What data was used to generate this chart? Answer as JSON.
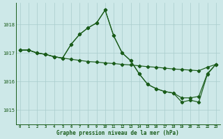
{
  "bg_color": "#cde8e8",
  "grid_color": "#a8cccc",
  "line_color": "#1a5c1a",
  "xlabel": "Graphe pression niveau de la mer (hPa)",
  "ylim": [
    1014.5,
    1018.75
  ],
  "xlim": [
    -0.5,
    23.5
  ],
  "yticks": [
    1015,
    1016,
    1017,
    1018
  ],
  "xticks": [
    0,
    1,
    2,
    3,
    4,
    5,
    6,
    7,
    8,
    9,
    10,
    11,
    12,
    13,
    14,
    15,
    16,
    17,
    18,
    19,
    20,
    21,
    22,
    23
  ],
  "series1_x": [
    0,
    1,
    2,
    3,
    4,
    5,
    6,
    7,
    8,
    9,
    10,
    11,
    12,
    13,
    14,
    15,
    16,
    17,
    18,
    19,
    20,
    21,
    22,
    23
  ],
  "series1_y": [
    1017.1,
    1017.1,
    1017.0,
    1016.95,
    1016.87,
    1016.82,
    1016.78,
    1016.74,
    1016.7,
    1016.68,
    1016.65,
    1016.63,
    1016.6,
    1016.58,
    1016.55,
    1016.52,
    1016.5,
    1016.47,
    1016.44,
    1016.42,
    1016.4,
    1016.38,
    1016.5,
    1016.6
  ],
  "series2_x": [
    0,
    1,
    2,
    3,
    4,
    5,
    6,
    7,
    8,
    9,
    10,
    11,
    12,
    13,
    14,
    15,
    16,
    17,
    18,
    19,
    20,
    21,
    22,
    23
  ],
  "series2_y": [
    1017.1,
    1017.1,
    1017.0,
    1016.95,
    1016.87,
    1016.82,
    1017.3,
    1017.65,
    1017.88,
    1018.05,
    1018.5,
    1017.6,
    1017.0,
    1016.73,
    1016.27,
    1015.9,
    1015.75,
    1015.65,
    1015.6,
    1015.28,
    1015.35,
    1015.28,
    1016.25,
    1016.6
  ],
  "series3_x": [
    0,
    1,
    2,
    3,
    4,
    5,
    6,
    7,
    8,
    9,
    10,
    11,
    12,
    13,
    14,
    15,
    16,
    17,
    18,
    19,
    20,
    21,
    22,
    23
  ],
  "series3_y": [
    1017.1,
    1017.1,
    1017.0,
    1016.95,
    1016.87,
    1016.82,
    1017.3,
    1017.65,
    1017.88,
    1018.05,
    1018.5,
    1017.6,
    1017.0,
    1016.73,
    1016.27,
    1015.9,
    1015.75,
    1015.65,
    1015.6,
    1015.43,
    1015.43,
    1015.48,
    1016.28,
    1016.6
  ]
}
